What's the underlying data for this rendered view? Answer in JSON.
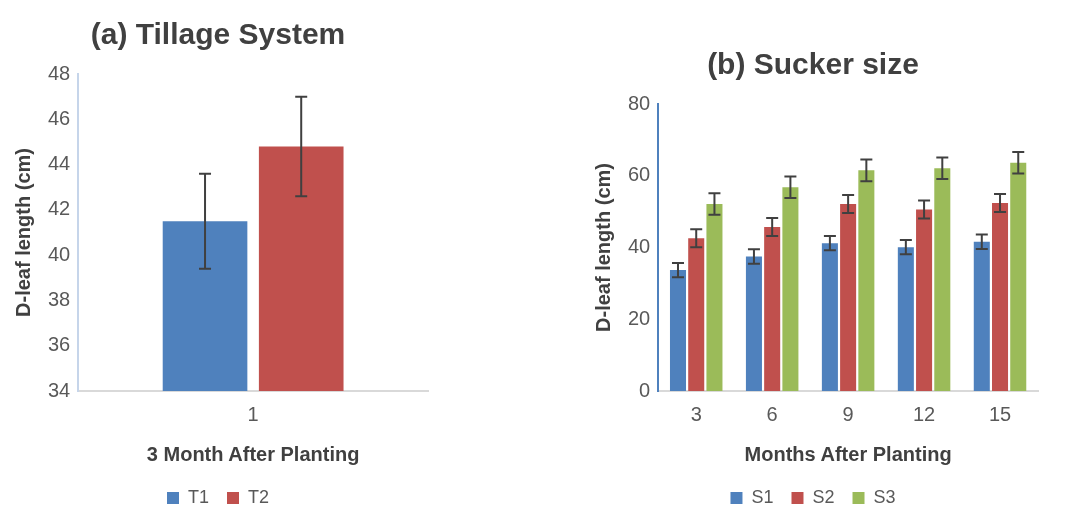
{
  "chart_data": [
    {
      "type": "bar",
      "title": "(a) Tillage System",
      "xlabel": "3 Month After Planting",
      "ylabel": "D-leaf length (cm)",
      "categories": [
        "1"
      ],
      "ylim": [
        34,
        48
      ],
      "yticks": [
        34,
        36,
        38,
        40,
        42,
        44,
        46,
        48
      ],
      "grid": false,
      "legend": "bottom",
      "series": [
        {
          "name": "T1",
          "color": "#4f81bd",
          "values": [
            41.5
          ],
          "errors": [
            2.1
          ]
        },
        {
          "name": "T2",
          "color": "#c0504d",
          "values": [
            44.8
          ],
          "errors": [
            2.2
          ]
        }
      ]
    },
    {
      "type": "bar",
      "title": "(b) Sucker size",
      "xlabel": "Months After Planting",
      "ylabel": "D-leaf length (cm)",
      "categories": [
        "3",
        "6",
        "9",
        "12",
        "15"
      ],
      "ylim": [
        0,
        80
      ],
      "yticks": [
        0,
        20,
        40,
        60,
        80
      ],
      "grid": false,
      "legend": "bottom",
      "series": [
        {
          "name": "S1",
          "color": "#4f81bd",
          "values": [
            33.7,
            37.5,
            41.2,
            40.1,
            41.6
          ],
          "errors": [
            2,
            2,
            2,
            2,
            2
          ]
        },
        {
          "name": "S2",
          "color": "#c0504d",
          "values": [
            42.6,
            45.7,
            52.1,
            50.6,
            52.4
          ],
          "errors": [
            2.5,
            2.5,
            2.5,
            2.5,
            2.5
          ]
        },
        {
          "name": "S3",
          "color": "#9bbb59",
          "values": [
            52.1,
            56.8,
            61.5,
            62.1,
            63.6
          ],
          "errors": [
            3,
            3,
            3,
            3,
            3
          ]
        }
      ]
    }
  ]
}
